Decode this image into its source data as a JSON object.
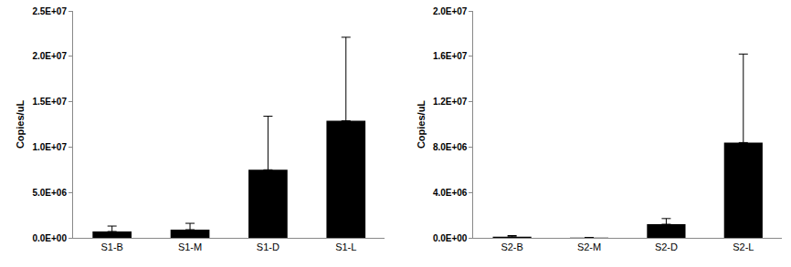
{
  "chart_data": [
    {
      "type": "bar",
      "y_label": "Copies/uL",
      "categories": [
        "S1-B",
        "S1-M",
        "S1-D",
        "S1-L"
      ],
      "values": [
        700000,
        900000,
        7500000,
        12900000
      ],
      "errors": [
        600000,
        700000,
        5900000,
        9200000
      ],
      "color": "#000000",
      "ylim": [
        0,
        25000000
      ],
      "yticks": [
        {
          "value": 0,
          "label": "0.0E+00"
        },
        {
          "value": 5000000,
          "label": "5.0E+06"
        },
        {
          "value": 10000000,
          "label": "1.0E+07"
        },
        {
          "value": 15000000,
          "label": "1.5E+07"
        },
        {
          "value": 20000000,
          "label": "2.0E+07"
        },
        {
          "value": 25000000,
          "label": "2.5E+07"
        }
      ],
      "grid": false
    },
    {
      "type": "bar",
      "y_label": "Copies/uL",
      "categories": [
        "S2-B",
        "S2-M",
        "S2-D",
        "S2-L"
      ],
      "values": [
        100000,
        20000,
        1200000,
        8400000
      ],
      "errors": [
        100000,
        10000,
        500000,
        7800000
      ],
      "color": "#000000",
      "ylim": [
        0,
        20000000
      ],
      "yticks": [
        {
          "value": 0,
          "label": "0.0E+00"
        },
        {
          "value": 4000000,
          "label": "4.0E+06"
        },
        {
          "value": 8000000,
          "label": "8.0E+06"
        },
        {
          "value": 12000000,
          "label": "1.2E+07"
        },
        {
          "value": 16000000,
          "label": "1.6E+07"
        },
        {
          "value": 20000000,
          "label": "2.0E+07"
        }
      ],
      "grid": false
    }
  ]
}
